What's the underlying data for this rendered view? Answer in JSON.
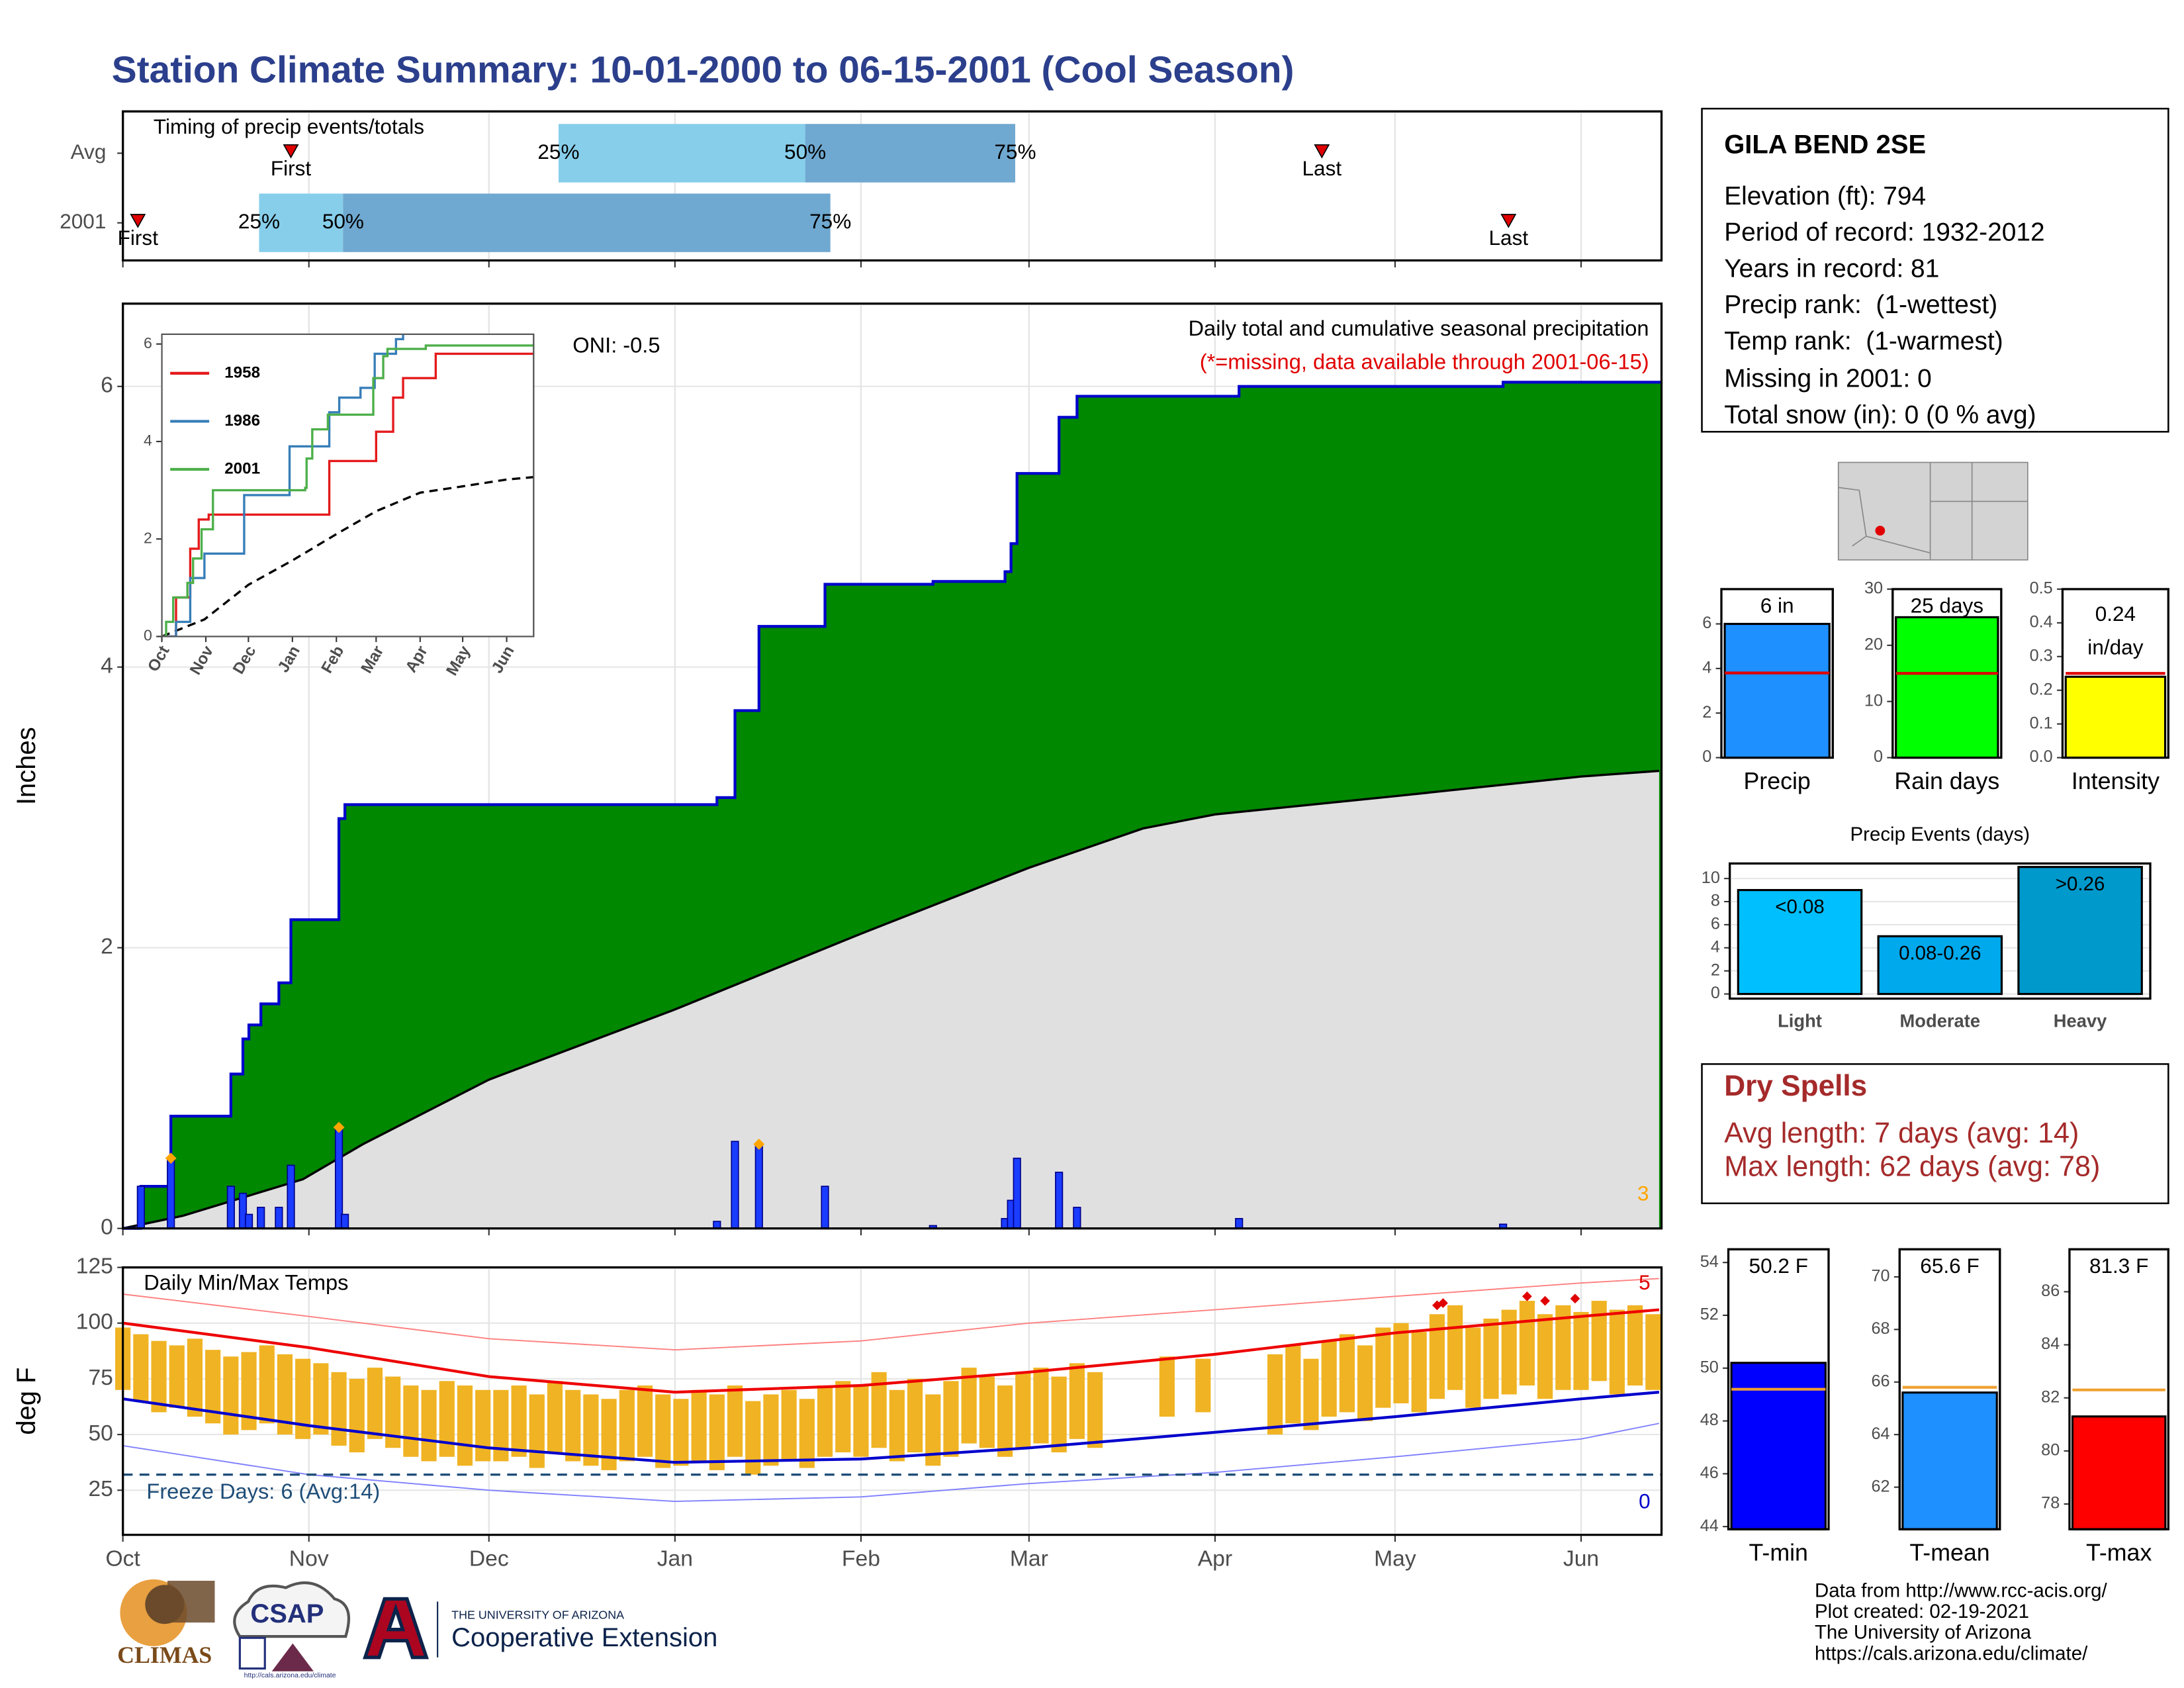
{
  "title": "Station Climate Summary: 10-01-2000 to 06-15-2001 (Cool Season)",
  "station": {
    "name": "GILA BEND 2SE",
    "lines": [
      "Elevation (ft): 794",
      "Period of record: 1932-2012",
      "Years in record: 81",
      "Precip rank:  (1-wettest)",
      "Temp rank:  (1-warmest)",
      "Missing in 2001: 0",
      "Total snow (in): 0 (0 % avg)"
    ]
  },
  "dry_spells": {
    "title": "Dry Spells",
    "lines": [
      "Avg length: 7 days (avg: 14)",
      "Max length: 62 days (avg: 78)"
    ]
  },
  "footer": [
    "Data from http://www.rcc-acis.org/",
    "Plot created: 02-19-2021",
    "The University of Arizona",
    "https://cals.arizona.edu/climate/"
  ],
  "logos": {
    "climas": "CLIMAS",
    "csap": "CSAP",
    "csap_url": "http://cals.arizona.edu/climate",
    "ua": "THE UNIVERSITY OF ARIZONA",
    "ua_unit": "Cooperative Extension"
  },
  "chart_data": [
    {
      "type": "timing",
      "title": "Timing of precip events/totals",
      "rows": [
        {
          "name": "Avg",
          "first": 28,
          "q25": 72.6,
          "q50": 113.7,
          "q75": 148.7,
          "last": 199.8
        },
        {
          "name": "2001",
          "first": 2.5,
          "q25": 22.7,
          "q50": 36.7,
          "q75": 117.9,
          "last": 230.9
        }
      ],
      "marker_labels": {
        "first": "First",
        "last": "Last",
        "q25": "25%",
        "q50": "50%",
        "q75": "75%"
      },
      "colors": {
        "q25": "#87ceeb",
        "q50": "#6fa8d0",
        "marker": "#e00000"
      },
      "xlim": [
        0,
        256.4
      ],
      "xticks": [
        0,
        31,
        61,
        92,
        123,
        151,
        182,
        212,
        243
      ]
    },
    {
      "type": "precip",
      "title": "Daily total and cumulative seasonal precipitation",
      "subtitle": "(*=missing, data available through 2001-06-15)",
      "annotation": "ONI: -0.5",
      "ylabel": "Inches",
      "flag_count": 3,
      "daily": {
        "x": [
          3,
          8,
          18,
          20,
          21,
          23,
          26,
          28,
          36,
          37,
          99,
          102,
          106,
          117,
          135,
          147,
          148,
          149,
          156,
          159,
          186,
          230
        ],
        "values": [
          0.3,
          0.5,
          0.3,
          0.25,
          0.1,
          0.15,
          0.15,
          0.45,
          0.72,
          0.1,
          0.05,
          0.62,
          0.6,
          0.3,
          0.02,
          0.07,
          0.2,
          0.5,
          0.4,
          0.15,
          0.07,
          0.03
        ],
        "color": "#1a3cff"
      },
      "flags": {
        "x": [
          8,
          36,
          106
        ],
        "values": [
          0.5,
          0.72,
          0.6
        ],
        "color": "#ffa500"
      },
      "cumulative_color": "#0000cc",
      "cumulative_fill": "#008800",
      "normal": {
        "x": [
          0,
          10,
          30,
          40,
          61,
          92,
          123,
          151,
          170,
          182,
          212,
          243,
          256
        ],
        "values": [
          0,
          0.09,
          0.35,
          0.6,
          1.06,
          1.56,
          2.1,
          2.57,
          2.85,
          2.95,
          3.08,
          3.22,
          3.26
        ],
        "fill": "#e0e0e0"
      },
      "xlim": [
        0,
        256.4
      ],
      "xticks": [
        0,
        31,
        61,
        92,
        123,
        151,
        182,
        212,
        243
      ],
      "ylim": [
        0,
        6.59
      ],
      "yticks": [
        0,
        2,
        4,
        6
      ],
      "grid": true
    },
    {
      "type": "line",
      "xlim": [
        0,
        262
      ],
      "ylim": [
        0,
        6.2
      ],
      "yticks": [
        0,
        2,
        4,
        6
      ],
      "xticks": [
        {
          "value": 0,
          "label": "Oct"
        },
        {
          "value": 31,
          "label": "Nov"
        },
        {
          "value": 61,
          "label": "Dec"
        },
        {
          "value": 92,
          "label": "Jan"
        },
        {
          "value": 123,
          "label": "Feb"
        },
        {
          "value": 151,
          "label": "Mar"
        },
        {
          "value": 182,
          "label": "Apr"
        },
        {
          "value": 212,
          "label": "May"
        },
        {
          "value": 243,
          "label": "Jun"
        }
      ],
      "series": [
        {
          "name": "1958",
          "color": "#e41a1c",
          "x": [
            0,
            10,
            20,
            26,
            33,
            117,
            118,
            150,
            151,
            163,
            170,
            192,
            193,
            262
          ],
          "values": [
            0,
            0.8,
            1.8,
            2.4,
            2.5,
            2.5,
            3.6,
            3.6,
            4.2,
            4.9,
            5.3,
            5.3,
            5.8,
            5.8
          ]
        },
        {
          "name": "1986",
          "color": "#377eb8",
          "x": [
            0,
            10,
            20,
            30,
            55,
            58,
            88,
            90,
            110,
            118,
            125,
            140,
            150,
            165,
            170,
            262
          ],
          "values": [
            0,
            0.3,
            1.2,
            1.7,
            1.7,
            2.9,
            2.9,
            3.9,
            3.9,
            4.6,
            4.9,
            5.1,
            5.8,
            6.1,
            6.3,
            6.3
          ]
        },
        {
          "name": "2001",
          "color": "#4daf4a",
          "x": [
            0,
            3,
            8,
            18,
            22,
            28,
            36,
            101,
            102,
            106,
            117,
            149,
            156,
            159,
            186,
            262
          ],
          "values": [
            0,
            0.3,
            0.8,
            1.1,
            1.6,
            2.2,
            3.0,
            3.05,
            3.65,
            4.25,
            4.55,
            5.3,
            5.75,
            5.9,
            5.97,
            6.0
          ]
        }
      ],
      "normal": {
        "x": [
          0,
          30,
          61,
          92,
          123,
          151,
          182,
          212,
          243,
          262
        ],
        "values": [
          0,
          0.35,
          1.06,
          1.56,
          2.1,
          2.57,
          2.95,
          3.08,
          3.22,
          3.27
        ],
        "color": "#000000"
      }
    },
    {
      "type": "temp",
      "title": "Daily Min/Max Temps",
      "ylabel": "deg F",
      "freeze_label": "Freeze Days: 6 (Avg:14)",
      "freeze_line": 32,
      "record_high_count": 5,
      "record_low_count": 0,
      "xlim": [
        0,
        256.4
      ],
      "xticks": [
        {
          "value": 0,
          "label": "Oct"
        },
        {
          "value": 31,
          "label": "Nov"
        },
        {
          "value": 61,
          "label": "Dec"
        },
        {
          "value": 92,
          "label": "Jan"
        },
        {
          "value": 123,
          "label": "Feb"
        },
        {
          "value": 151,
          "label": "Mar"
        },
        {
          "value": 182,
          "label": "Apr"
        },
        {
          "value": 212,
          "label": "May"
        },
        {
          "value": 243,
          "label": "Jun"
        }
      ],
      "ylim": [
        5,
        125
      ],
      "yticks": [
        25,
        50,
        75,
        100,
        125
      ],
      "grid": true,
      "daily": {
        "color": "#f0b323",
        "x": [
          0,
          3,
          6,
          9,
          12,
          15,
          18,
          21,
          24,
          27,
          30,
          33,
          36,
          39,
          42,
          45,
          48,
          51,
          54,
          57,
          60,
          63,
          66,
          69,
          72,
          75,
          78,
          81,
          84,
          87,
          90,
          93,
          96,
          99,
          102,
          105,
          108,
          111,
          114,
          117,
          120,
          123,
          126,
          129,
          132,
          135,
          138,
          141,
          144,
          147,
          150,
          153,
          156,
          159,
          162,
          165,
          168,
          171,
          174,
          177,
          180,
          183,
          186,
          189,
          192,
          195,
          198,
          201,
          204,
          207,
          210,
          213,
          216,
          219,
          222,
          225,
          228,
          231,
          234,
          237,
          240,
          243,
          246,
          249,
          252,
          255
        ],
        "max": [
          98,
          95,
          92,
          90,
          93,
          88,
          85,
          87,
          90,
          86,
          84,
          82,
          78,
          75,
          80,
          76,
          72,
          70,
          74,
          72,
          70,
          70,
          72,
          68,
          74,
          70,
          68,
          66,
          70,
          72,
          68,
          66,
          70,
          68,
          72,
          65,
          68,
          70,
          66,
          72,
          74,
          72,
          78,
          70,
          75,
          68,
          74,
          80,
          76,
          72,
          78,
          80,
          76,
          82,
          78,
          null,
          null,
          null,
          85,
          null,
          84,
          null,
          null,
          null,
          86,
          90,
          84,
          92,
          95,
          90,
          98,
          100,
          96,
          104,
          108,
          98,
          102,
          106,
          110,
          104,
          108,
          105,
          110,
          106,
          108,
          104
        ],
        "min": [
          70,
          65,
          60,
          62,
          58,
          55,
          50,
          52,
          55,
          50,
          48,
          50,
          45,
          42,
          48,
          44,
          40,
          38,
          40,
          36,
          38,
          38,
          40,
          35,
          42,
          38,
          36,
          34,
          38,
          40,
          35,
          36,
          38,
          34,
          40,
          32,
          36,
          38,
          35,
          40,
          42,
          40,
          44,
          38,
          42,
          36,
          40,
          46,
          44,
          40,
          44,
          46,
          42,
          48,
          44,
          null,
          null,
          null,
          58,
          null,
          60,
          null,
          null,
          null,
          50,
          55,
          52,
          58,
          60,
          56,
          62,
          64,
          60,
          66,
          70,
          62,
          66,
          68,
          72,
          66,
          70,
          70,
          74,
          68,
          72,
          70
        ]
      },
      "normal_max": {
        "x": [
          0,
          31,
          61,
          92,
          123,
          151,
          182,
          212,
          243,
          256
        ],
        "values": [
          100,
          89,
          76,
          69,
          72,
          78,
          86,
          95.6,
          103,
          106
        ],
        "color": "#ee0000"
      },
      "normal_min": {
        "x": [
          0,
          31,
          61,
          92,
          123,
          151,
          182,
          212,
          243,
          256
        ],
        "values": [
          66,
          54,
          44,
          37.5,
          39,
          44,
          51,
          58,
          66,
          69
        ],
        "color": "#0000cc"
      },
      "record_max": {
        "x": [
          0,
          31,
          61,
          92,
          123,
          151,
          182,
          212,
          243,
          256
        ],
        "values": [
          113,
          103,
          93,
          88,
          92,
          100,
          106,
          112,
          118,
          120
        ],
        "color": "#ff8080"
      },
      "record_min": {
        "x": [
          0,
          31,
          61,
          92,
          123,
          151,
          182,
          212,
          243,
          256
        ],
        "values": [
          45,
          32,
          25,
          20,
          22,
          28,
          33,
          40,
          48,
          55
        ],
        "color": "#8080ff"
      },
      "record_highs": {
        "x": [
          219,
          220,
          234,
          237,
          242
        ],
        "values": [
          108,
          109,
          112,
          110,
          111
        ],
        "color": "#e00000"
      }
    },
    {
      "type": "bar",
      "categories": [
        "Precip"
      ],
      "values": [
        6
      ],
      "value_labels": [
        "6 in"
      ],
      "avg": [
        3.8
      ],
      "avg_color": "#e00000",
      "color": "#1e90ff",
      "ylim": [
        0,
        7.56
      ],
      "yticks": [
        0,
        2,
        4,
        6
      ]
    },
    {
      "type": "bar",
      "categories": [
        "Rain days"
      ],
      "values": [
        25
      ],
      "value_labels": [
        "25 days"
      ],
      "avg": [
        15
      ],
      "avg_color": "#e00000",
      "color": "#00ff00",
      "ylim": [
        0,
        30
      ],
      "yticks": [
        0,
        10,
        20,
        30
      ]
    },
    {
      "type": "bar",
      "categories": [
        "Intensity"
      ],
      "values": [
        0.24
      ],
      "value_labels": [
        "0.24 in/day"
      ],
      "avg": [
        0.25
      ],
      "avg_color": "#e00000",
      "color": "#ffff00",
      "ylim": [
        0,
        0.5
      ],
      "yticks": [
        {
          "value": 0,
          "label": "0.0"
        },
        0.1,
        0.2,
        0.3,
        0.4,
        0.5
      ]
    },
    {
      "type": "bar",
      "title": "Precip Events (days)",
      "categories": [
        "Light",
        "Moderate",
        "Heavy"
      ],
      "values": [
        9,
        5,
        11
      ],
      "bin_labels": [
        "<0.08",
        "0.08-0.26",
        ">0.26"
      ],
      "colors": [
        "#00bfff",
        "#00a8ec",
        "#0099cc"
      ],
      "ylim": [
        -0.4,
        11.3
      ],
      "yticks": [
        0,
        2,
        4,
        6,
        8,
        10
      ],
      "grid": true
    },
    {
      "type": "bar",
      "categories": [
        "T-min"
      ],
      "values": [
        50.2
      ],
      "value_labels": [
        "50.2 F"
      ],
      "avg": [
        49.2
      ],
      "avg_color": "#f0a030",
      "color": "#0000ff",
      "ylim": [
        43.9,
        54.5
      ],
      "yticks": [
        44,
        46,
        48,
        50,
        52,
        54
      ]
    },
    {
      "type": "bar",
      "categories": [
        "T-mean"
      ],
      "values": [
        65.6
      ],
      "value_labels": [
        "65.6 F"
      ],
      "avg": [
        65.8
      ],
      "avg_color": "#f0a030",
      "color": "#1e90ff",
      "ylim": [
        60.4,
        71.05
      ],
      "yticks": [
        62,
        64,
        66,
        68,
        70
      ]
    },
    {
      "type": "bar",
      "categories": [
        "T-max"
      ],
      "values": [
        81.3
      ],
      "value_labels": [
        "81.3 F"
      ],
      "avg": [
        82.3
      ],
      "avg_color": "#f0a030",
      "color": "#ff0000",
      "ylim": [
        77.05,
        87.6
      ],
      "yticks": [
        78,
        80,
        82,
        84,
        86
      ]
    }
  ]
}
